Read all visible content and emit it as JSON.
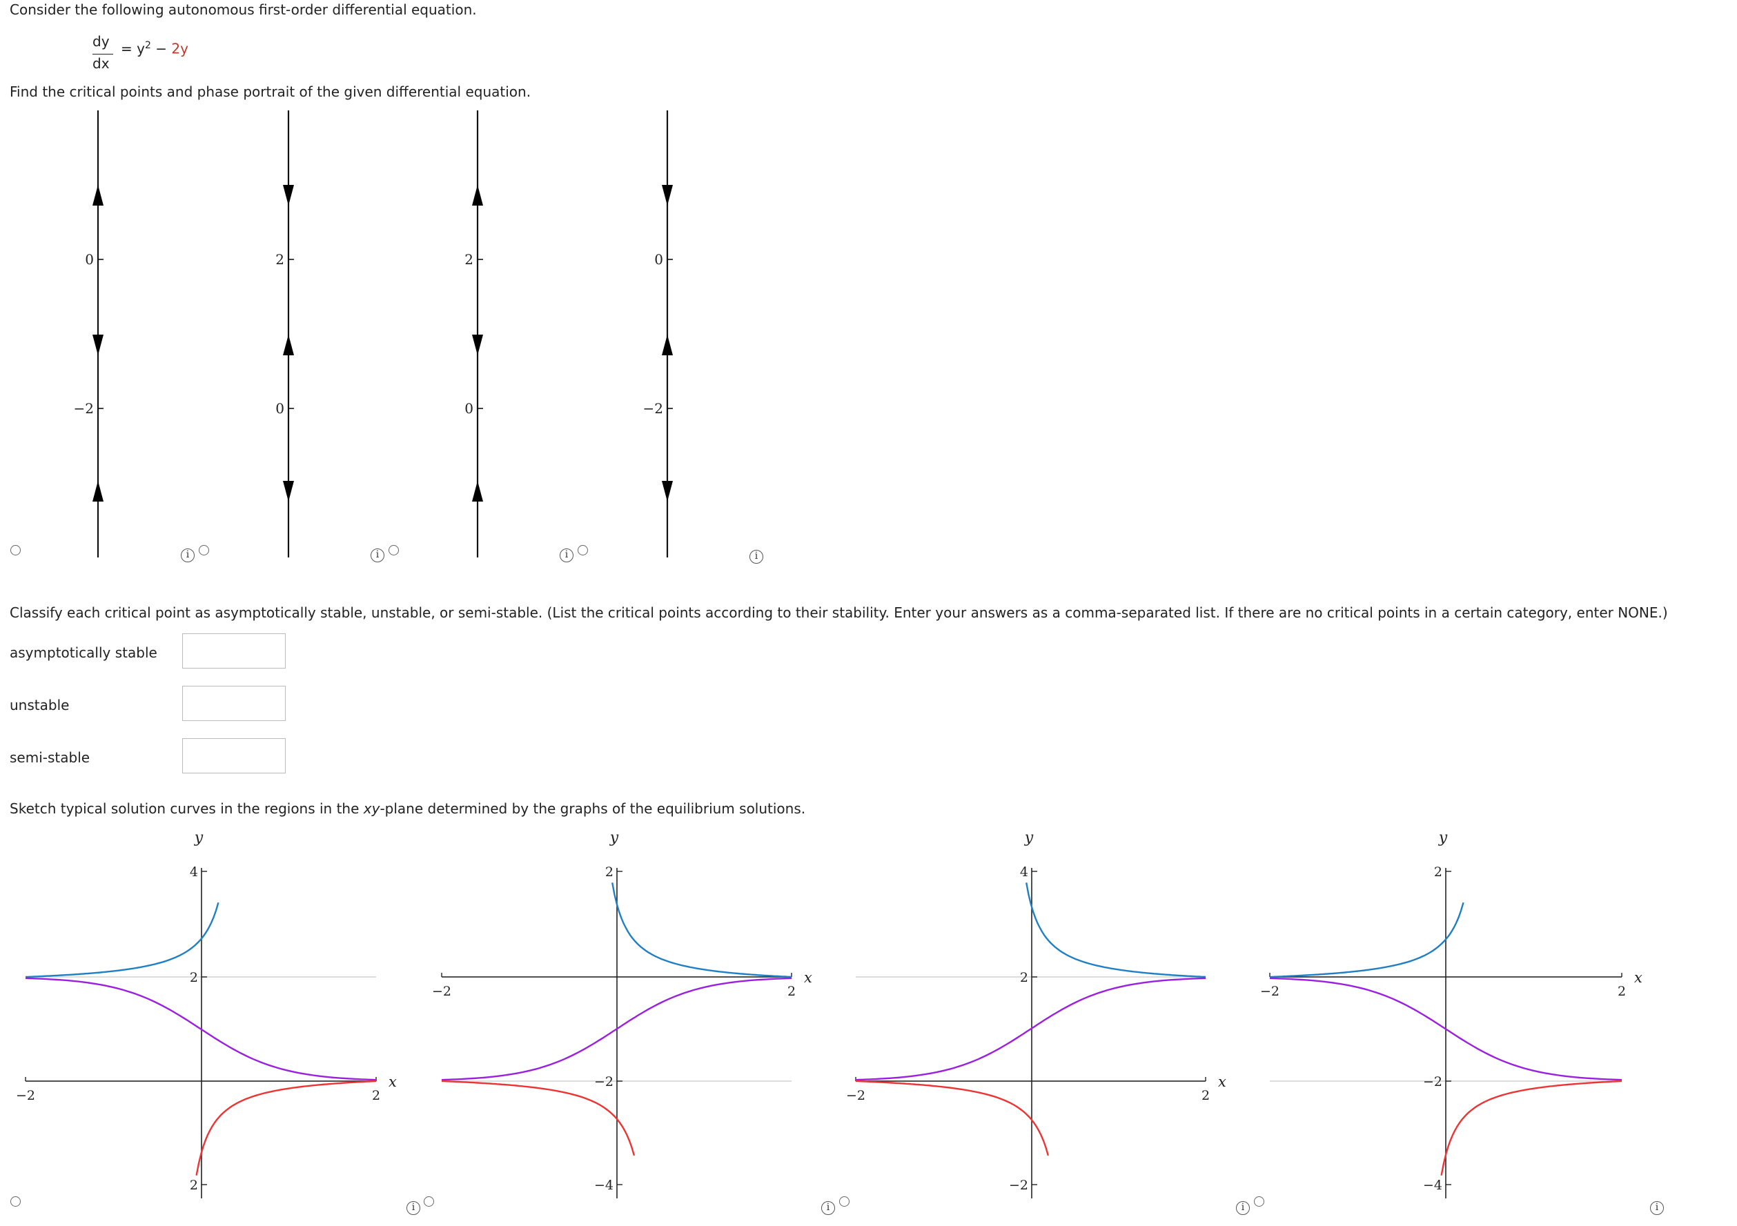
{
  "intro": "Consider the following autonomous first-order differential equation.",
  "equation": {
    "num": "dy",
    "den": "dx",
    "eq": "=",
    "lhs_var": "y",
    "power": "2",
    "minus": "−",
    "rhs_term": "2y"
  },
  "instruction1": "Find the critical points and phase portrait of the given differential equation.",
  "phase_portraits": [
    {
      "ticks": [
        {
          "label": "0",
          "y": 0
        },
        {
          "label": "−2",
          "y": -2
        }
      ],
      "arrows": [
        "up",
        "down",
        "up"
      ]
    },
    {
      "ticks": [
        {
          "label": "2",
          "y": 2
        },
        {
          "label": "0",
          "y": 0
        }
      ],
      "arrows": [
        "down",
        "up",
        "down"
      ]
    },
    {
      "ticks": [
        {
          "label": "2",
          "y": 2
        },
        {
          "label": "0",
          "y": 0
        }
      ],
      "arrows": [
        "up",
        "down",
        "up"
      ]
    },
    {
      "ticks": [
        {
          "label": "0",
          "y": 0
        },
        {
          "label": "−2",
          "y": -2
        }
      ],
      "arrows": [
        "down",
        "up",
        "down"
      ]
    }
  ],
  "classify_prompt": "Classify each critical point as asymptotically stable, unstable, or semi-stable. (List the critical points according to their stability. Enter your answers as a comma-separated list. If there are no critical points in a certain category, enter NONE.)",
  "answers": [
    {
      "label": "asymptotically stable",
      "value": ""
    },
    {
      "label": "unstable",
      "value": ""
    },
    {
      "label": "semi-stable",
      "value": ""
    }
  ],
  "sketch_prompt": {
    "before": "Sketch typical solution curves in the regions in the ",
    "xy": "xy",
    "after": "-plane determined by the graphs of the equilibrium solutions."
  },
  "graphs": [
    {
      "y_axis_label": "y",
      "x_axis_label": "x",
      "xmin_label": "−2",
      "xmax_label": "2",
      "ytick_labels": [
        "4",
        "2",
        "2"
      ],
      "equilibria": [
        2,
        0
      ]
    },
    {
      "y_axis_label": "y",
      "x_axis_label": "x",
      "xmin_label": "−2",
      "xmax_label": "2",
      "ytick_labels": [
        "2",
        "−2",
        "−4"
      ],
      "equilibria": [
        0,
        -2
      ]
    },
    {
      "y_axis_label": "y",
      "x_axis_label": "x",
      "xmin_label": "−2",
      "xmax_label": "2",
      "ytick_labels": [
        "4",
        "2",
        "−2"
      ],
      "equilibria": [
        2,
        0
      ]
    },
    {
      "y_axis_label": "y",
      "x_axis_label": "x",
      "xmin_label": "−2",
      "xmax_label": "2",
      "ytick_labels": [
        "2",
        "−2",
        "−4"
      ],
      "equilibria": [
        0,
        -2
      ]
    }
  ],
  "curve_colors": {
    "upper": "#1f7fc4",
    "middle": "#9b1fe0",
    "lower": "#ee3333",
    "axis": "#222222",
    "equilibrium": "#dddddd"
  },
  "info_glyph": "i"
}
